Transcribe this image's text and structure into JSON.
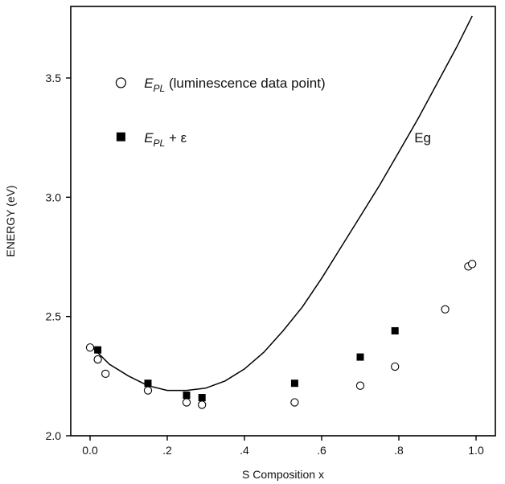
{
  "chart_data": {
    "type": "scatter",
    "xlabel": "S Composition x",
    "ylabel": "ENERGY (eV)",
    "xlim": [
      -0.05,
      1.05
    ],
    "ylim": [
      2.0,
      3.8
    ],
    "x_ticks": [
      {
        "value": 0.0,
        "label": "0.0"
      },
      {
        "value": 0.2,
        "label": ".2"
      },
      {
        "value": 0.4,
        "label": ".4"
      },
      {
        "value": 0.6,
        "label": ".6"
      },
      {
        "value": 0.8,
        "label": ".8"
      },
      {
        "value": 1.0,
        "label": "1.0"
      }
    ],
    "y_ticks": [
      {
        "value": 2.0,
        "label": "2.0"
      },
      {
        "value": 2.5,
        "label": "2.5"
      },
      {
        "value": 3.0,
        "label": "3.0"
      },
      {
        "value": 3.5,
        "label": "3.5"
      }
    ],
    "grid": false,
    "series": [
      {
        "name": "E_PL (luminescence data point)",
        "marker": "open-circle",
        "points": [
          {
            "x": 0.0,
            "y": 2.37
          },
          {
            "x": 0.02,
            "y": 2.32
          },
          {
            "x": 0.04,
            "y": 2.26
          },
          {
            "x": 0.15,
            "y": 2.19
          },
          {
            "x": 0.25,
            "y": 2.14
          },
          {
            "x": 0.29,
            "y": 2.13
          },
          {
            "x": 0.53,
            "y": 2.14
          },
          {
            "x": 0.7,
            "y": 2.21
          },
          {
            "x": 0.79,
            "y": 2.29
          },
          {
            "x": 0.92,
            "y": 2.53
          },
          {
            "x": 0.98,
            "y": 2.71
          },
          {
            "x": 0.99,
            "y": 2.72
          }
        ]
      },
      {
        "name": "E_PL + ε",
        "marker": "filled-square",
        "points": [
          {
            "x": 0.02,
            "y": 2.36
          },
          {
            "x": 0.15,
            "y": 2.22
          },
          {
            "x": 0.25,
            "y": 2.17
          },
          {
            "x": 0.29,
            "y": 2.16
          },
          {
            "x": 0.53,
            "y": 2.22
          },
          {
            "x": 0.7,
            "y": 2.33
          },
          {
            "x": 0.79,
            "y": 2.44
          }
        ]
      },
      {
        "name": "Eg",
        "type": "line",
        "points": [
          {
            "x": 0.0,
            "y": 2.38
          },
          {
            "x": 0.05,
            "y": 2.3
          },
          {
            "x": 0.1,
            "y": 2.25
          },
          {
            "x": 0.15,
            "y": 2.21
          },
          {
            "x": 0.2,
            "y": 2.19
          },
          {
            "x": 0.25,
            "y": 2.19
          },
          {
            "x": 0.3,
            "y": 2.2
          },
          {
            "x": 0.35,
            "y": 2.23
          },
          {
            "x": 0.4,
            "y": 2.28
          },
          {
            "x": 0.45,
            "y": 2.35
          },
          {
            "x": 0.5,
            "y": 2.44
          },
          {
            "x": 0.55,
            "y": 2.54
          },
          {
            "x": 0.6,
            "y": 2.66
          },
          {
            "x": 0.65,
            "y": 2.79
          },
          {
            "x": 0.7,
            "y": 2.92
          },
          {
            "x": 0.75,
            "y": 3.05
          },
          {
            "x": 0.8,
            "y": 3.19
          },
          {
            "x": 0.85,
            "y": 3.33
          },
          {
            "x": 0.9,
            "y": 3.48
          },
          {
            "x": 0.95,
            "y": 3.63
          },
          {
            "x": 0.99,
            "y": 3.76
          }
        ]
      }
    ],
    "legend": {
      "placement": "top-left",
      "entries": [
        {
          "main": "E",
          "sub": "PL",
          "tail": " (luminescence data point)",
          "marker": "open-circle"
        },
        {
          "main": "E",
          "sub": "PL",
          "tail": " + ε",
          "marker": "filled-square"
        }
      ]
    },
    "curve_label": "Eg"
  }
}
